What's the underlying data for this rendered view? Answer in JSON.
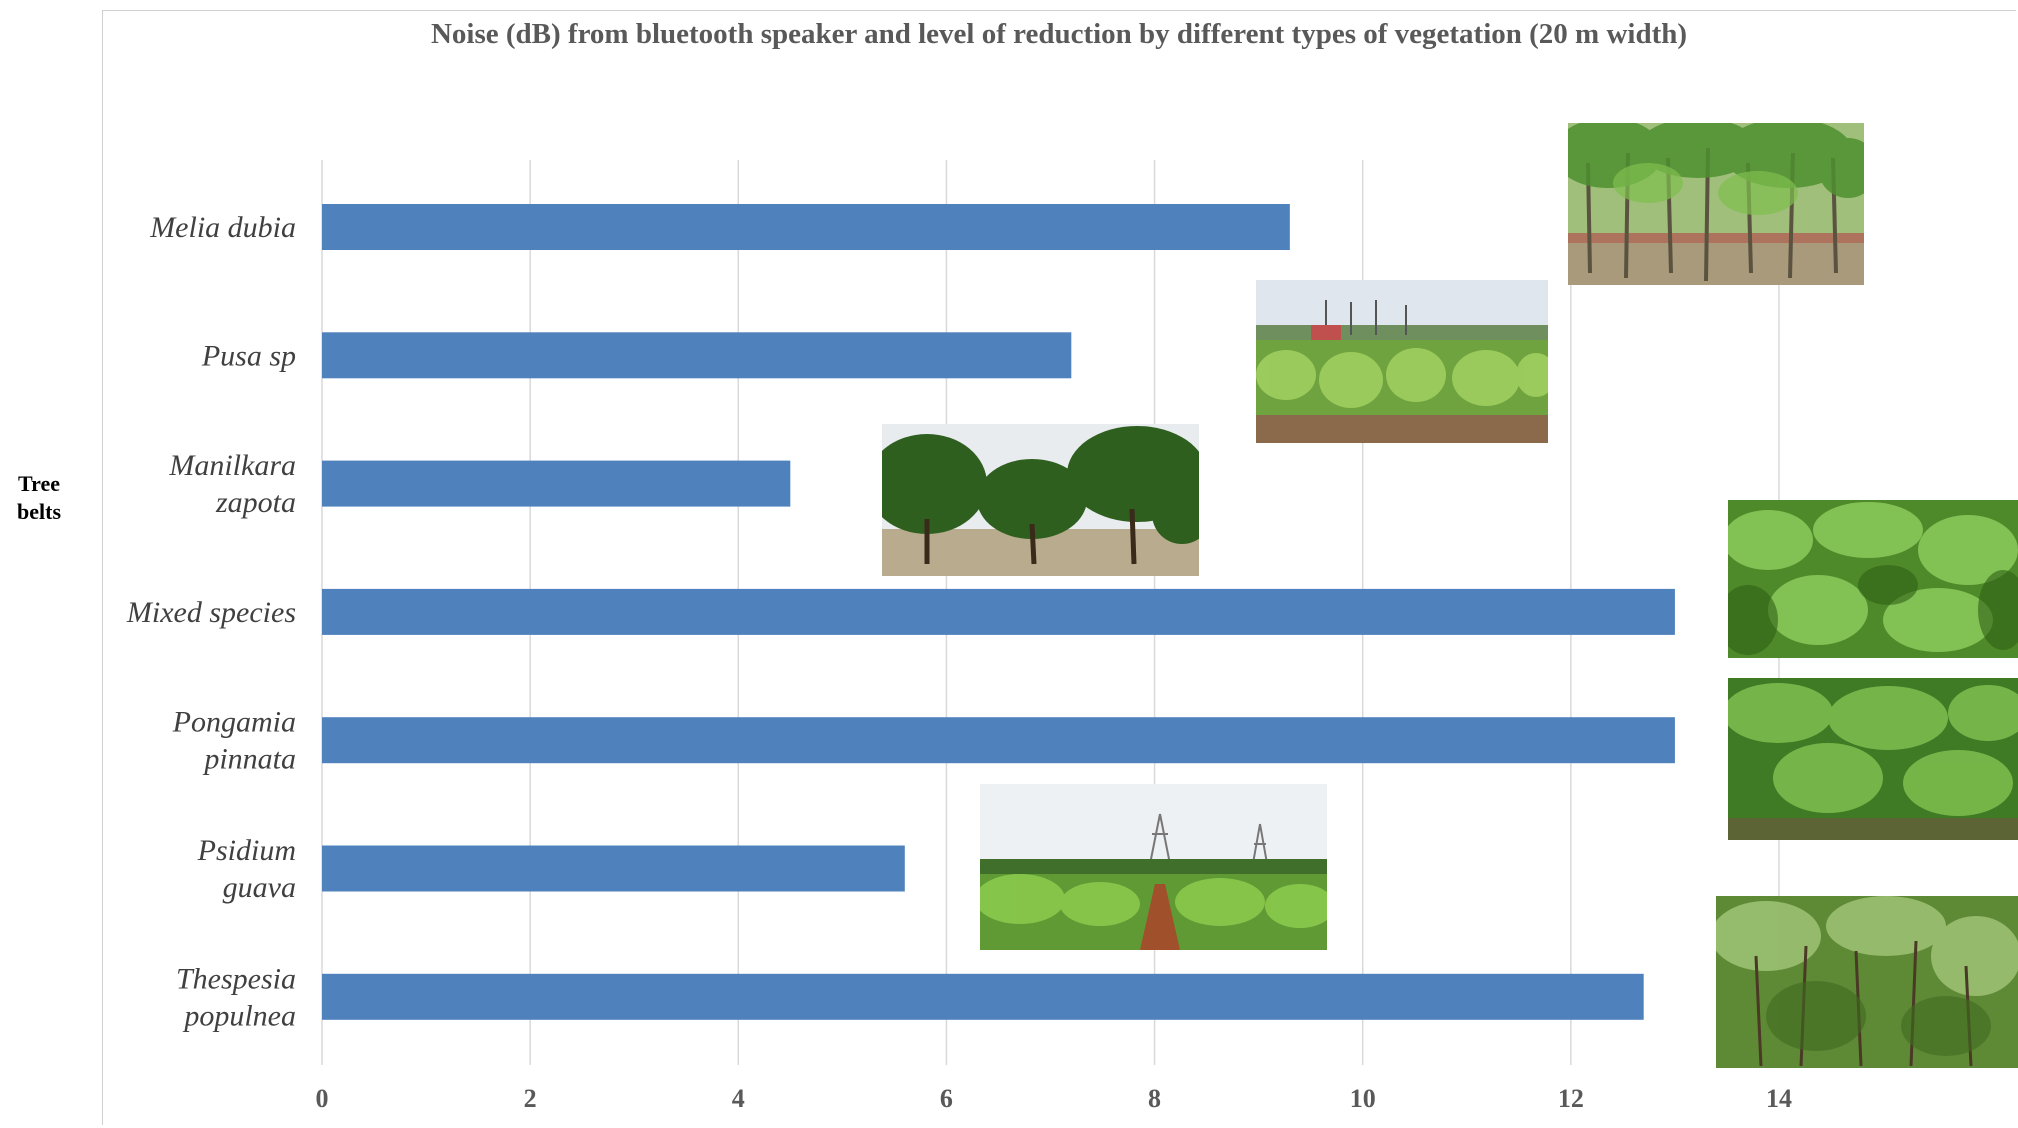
{
  "chart_data": {
    "type": "bar",
    "orientation": "horizontal",
    "title": "Noise (dB) from bluetooth speaker and level of reduction by  different types of vegetation (20 m width)",
    "ylabel": "Tree belts",
    "xlabel": "",
    "categories": [
      [
        "Melia dubia"
      ],
      [
        "Pusa sp"
      ],
      [
        "Manilkara",
        "zapota"
      ],
      [
        "Mixed species"
      ],
      [
        "Pongamia",
        "pinnata"
      ],
      [
        "Psidium",
        "guava"
      ],
      [
        "Thespesia",
        "populnea"
      ]
    ],
    "values": [
      9.3,
      7.2,
      4.5,
      13.0,
      13.0,
      5.6,
      12.7
    ],
    "xlim": [
      0,
      14
    ],
    "xticks": [
      "0",
      "2",
      "4",
      "6",
      "8",
      "10",
      "12",
      "14"
    ],
    "grid": true,
    "bar_color": "#4F81BD",
    "grid_color": "#D9D9D9"
  },
  "photos": [
    {
      "name": "melia-dubia-photo",
      "depicts": "tall thin tree plantation"
    },
    {
      "name": "pusa-sp-photo",
      "depicts": "banana plantation with palms"
    },
    {
      "name": "manilkara-zapota-photo",
      "depicts": "broad sapota trees"
    },
    {
      "name": "mixed-species-photo",
      "depicts": "dense mixed foliage"
    },
    {
      "name": "pongamia-pinnata-photo",
      "depicts": "dense pongamia foliage"
    },
    {
      "name": "psidium-guava-photo",
      "depicts": "guava orchard with pylons"
    },
    {
      "name": "thespesia-populnea-photo",
      "depicts": "thespesia shrub belt"
    }
  ]
}
